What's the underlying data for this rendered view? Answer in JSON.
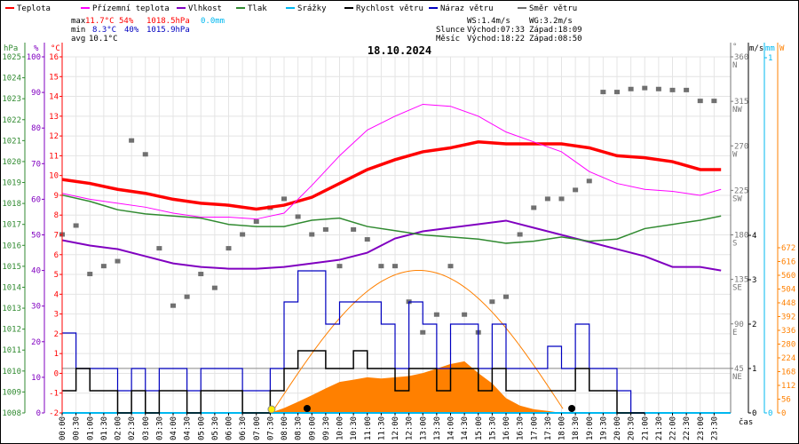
{
  "legend": [
    {
      "label": "Teplota",
      "color": "#ff0000"
    },
    {
      "label": "Přízemní teplota",
      "color": "#ff00ff"
    },
    {
      "label": "Vlhkost",
      "color": "#8000c0"
    },
    {
      "label": "Tlak",
      "color": "#308a30"
    },
    {
      "label": "Srážky",
      "color": "#00b8f0"
    },
    {
      "label": "Rychlost větru",
      "color": "#000000"
    },
    {
      "label": "Náraz větru",
      "color": "#0000c0"
    },
    {
      "label": "Směr větru",
      "color": "#707070"
    }
  ],
  "stats": {
    "max_label": "max",
    "max_temp": "11.7°C",
    "max_hum": "54%",
    "max_press": "1018.5hPa",
    "max_rain": "0.0mm",
    "min_label": "min",
    "min_temp": "8.3°C",
    "min_hum": "40%",
    "min_press": "1015.9hPa",
    "avg_label": "avg",
    "avg_temp": "10.1°C"
  },
  "wind_info": {
    "ws": "WS:1.4m/s",
    "wg": "WG:3.2m/s"
  },
  "sun": {
    "label": "Slunce",
    "rise": "Východ:07:33",
    "set": "Západ:18:09"
  },
  "moon": {
    "label": "Měsíc",
    "rise": "Východ:18:22",
    "set": "Západ:08:50"
  },
  "chart_data": {
    "type": "line",
    "title": "18.10.2024",
    "xlabel": "čas",
    "x_ticks": [
      "00:00",
      "00:30",
      "01:00",
      "01:30",
      "02:00",
      "02:30",
      "03:00",
      "03:30",
      "04:00",
      "04:30",
      "05:00",
      "05:30",
      "06:00",
      "06:30",
      "07:00",
      "07:30",
      "08:00",
      "08:30",
      "09:00",
      "09:30",
      "10:00",
      "10:30",
      "11:00",
      "11:30",
      "12:00",
      "12:30",
      "13:00",
      "13:30",
      "14:00",
      "14:30",
      "15:00",
      "15:30",
      "16:00",
      "16:30",
      "17:00",
      "17:30",
      "18:00",
      "18:30",
      "19:00",
      "19:30",
      "20:00",
      "20:30",
      "21:00",
      "21:30",
      "22:00",
      "22:30",
      "23:00",
      "23:30"
    ],
    "axes": {
      "hPa": {
        "unit": "hPa",
        "range": [
          1008,
          1025
        ]
      },
      "percent": {
        "unit": "%",
        "range": [
          0,
          100
        ]
      },
      "celsius": {
        "unit": "°C",
        "range": [
          -2,
          16
        ]
      },
      "degrees": {
        "unit": "°",
        "range": [
          0,
          360
        ],
        "compass": {
          "45": "NE",
          "90": "E",
          "135": "SE",
          "180": "S",
          "225": "SW",
          "270": "W",
          "315": "NW",
          "360": "N"
        }
      },
      "ms": {
        "unit": "m/s",
        "range": [
          0,
          4
        ]
      },
      "mm": {
        "unit": "mm",
        "range": [
          0,
          1
        ]
      },
      "W": {
        "unit": "W",
        "range": [
          0,
          672
        ],
        "ticks": [
          0,
          56,
          112,
          168,
          224,
          280,
          336,
          392,
          448,
          504,
          560,
          616,
          672
        ]
      }
    },
    "hours": [
      0,
      1,
      2,
      3,
      4,
      5,
      6,
      7,
      8,
      9,
      10,
      11,
      12,
      13,
      14,
      15,
      16,
      17,
      18,
      19,
      20,
      21,
      22,
      23,
      23.75
    ],
    "series": [
      {
        "name": "Teplota",
        "axis": "celsius",
        "values": [
          9.8,
          9.6,
          9.3,
          9.1,
          8.8,
          8.6,
          8.5,
          8.3,
          8.5,
          8.9,
          9.6,
          10.3,
          10.8,
          11.2,
          11.4,
          11.7,
          11.6,
          11.6,
          11.6,
          11.4,
          11.0,
          10.9,
          10.7,
          10.3,
          10.3
        ]
      },
      {
        "name": "Přízemní teplota",
        "axis": "celsius",
        "values": [
          9.1,
          8.8,
          8.6,
          8.4,
          8.1,
          7.9,
          7.9,
          7.8,
          8.1,
          9.5,
          11.0,
          12.3,
          13.0,
          13.6,
          13.5,
          13.0,
          12.2,
          11.7,
          11.2,
          10.2,
          9.6,
          9.3,
          9.2,
          9.0,
          9.3
        ]
      },
      {
        "name": "Vlhkost",
        "axis": "percent",
        "values": [
          48.5,
          47,
          46,
          44,
          42,
          41,
          40.5,
          40.5,
          41,
          42,
          43,
          45,
          49,
          51,
          52,
          53,
          54,
          52,
          50,
          48,
          46,
          44,
          41,
          41,
          40
        ]
      },
      {
        "name": "Tlak",
        "axis": "hPa",
        "values": [
          1018.4,
          1018.1,
          1017.7,
          1017.5,
          1017.4,
          1017.3,
          1017.0,
          1016.9,
          1016.9,
          1017.2,
          1017.3,
          1016.9,
          1016.7,
          1016.5,
          1016.4,
          1016.3,
          1016.1,
          1016.2,
          1016.4,
          1016.2,
          1016.3,
          1016.8,
          1017.0,
          1017.2,
          1017.4
        ]
      }
    ],
    "wind_speed": [
      0.5,
      1.0,
      0.5,
      0.5,
      0,
      0.5,
      0,
      0.5,
      0.5,
      0,
      0.5,
      0.5,
      0.5,
      0,
      0,
      0.5,
      1.0,
      1.4,
      1.4,
      1.0,
      1.0,
      1.4,
      1.0,
      1.0,
      0.5,
      1.0,
      1.0,
      0.5,
      1.0,
      1.0,
      0.5,
      1.0,
      0.5,
      0.5,
      0.5,
      0.5,
      0.5,
      1.0,
      0.5,
      0.5,
      0,
      0
    ],
    "wind_gust": [
      1.8,
      1.0,
      1.0,
      1.0,
      0.5,
      1.0,
      0.5,
      1.0,
      1.0,
      0.5,
      1.0,
      1.0,
      1.0,
      0.5,
      0.5,
      1.0,
      2.5,
      3.2,
      3.2,
      2.0,
      2.5,
      2.5,
      2.5,
      2.0,
      1.0,
      2.5,
      2.0,
      1.0,
      2.0,
      2.0,
      1.0,
      2.0,
      1.0,
      1.0,
      1.0,
      1.5,
      1.0,
      2.0,
      1.0,
      1.0,
      0.5,
      0
    ],
    "wind_dir": [
      180,
      189,
      140,
      148,
      153,
      275,
      261,
      166,
      108,
      117,
      140,
      126,
      166,
      180,
      193,
      207,
      216,
      198,
      180,
      185,
      148,
      185,
      175,
      148,
      148,
      112,
      81,
      99,
      148,
      99,
      81,
      112,
      117,
      180,
      207,
      216,
      216,
      225,
      234,
      324,
      324,
      327,
      328,
      327,
      326,
      326,
      315,
      315
    ],
    "solar_hours": [
      7.5,
      8,
      8.5,
      9,
      9.5,
      10,
      10.5,
      11,
      11.5,
      12,
      12.5,
      13,
      13.5,
      14,
      14.5,
      15,
      15.5,
      16,
      16.5,
      17,
      17.5,
      18
    ],
    "solar_measured": [
      0,
      20,
      45,
      72,
      100,
      126,
      135,
      145,
      140,
      145,
      150,
      162,
      180,
      199,
      210,
      162,
      120,
      60,
      30,
      15,
      8,
      0
    ],
    "solar_theoretical_peak": 580,
    "precipitation_mm": 0.0
  }
}
